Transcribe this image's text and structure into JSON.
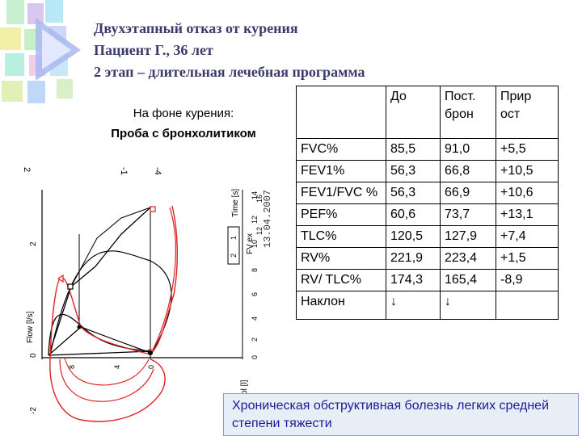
{
  "slide": {
    "title_lines": [
      "Двухэтапный отказ от курения",
      "Пациент Г., 36 лет",
      "2 этап – длительная лечебная программа"
    ],
    "subtitle_line1": "На фоне курения:",
    "subtitle_line2": "Проба с бронхолитиком"
  },
  "chart": {
    "y_axis_label": "Flow [l/s]",
    "x_axis_label": "Vol [l]",
    "fv_label": "FV ex",
    "time_label": "Time [s]",
    "date_stamp": "13.04.2007",
    "left_ticks": [
      "2",
      "0",
      "-2"
    ],
    "right_ticks": [
      "14",
      "12",
      "10",
      "8",
      "6",
      "4",
      "2",
      "0"
    ],
    "time_ticks": [
      "16",
      "12",
      "8",
      "4",
      "0"
    ],
    "legend": [
      "1",
      "2"
    ],
    "top_ticks": [
      "2",
      "-1",
      "-4"
    ]
  },
  "table": {
    "headers": [
      "",
      "До",
      "Пост. брон",
      "Прир ост"
    ],
    "rows": [
      [
        "FVC%",
        "85,5",
        "91,0",
        "+5,5"
      ],
      [
        "FEV1%",
        "56,3",
        "66,8",
        "+10,5"
      ],
      [
        "FEV1/FVC %",
        "56,3",
        "66,9",
        "+10,6"
      ],
      [
        "PEF%",
        "60,6",
        "73,7",
        "+13,1"
      ],
      [
        "TLC%",
        "120,5",
        "127,9",
        "+7,4"
      ],
      [
        "RV%",
        "221,9",
        "223,4",
        "+1,5"
      ],
      [
        "RV/ TLC%",
        "174,3",
        "165,4",
        "-8,9"
      ],
      [
        "Наклон",
        "↓",
        "↓",
        ""
      ]
    ]
  },
  "conclusion": "Хроническая обструктивная болезнь легких средней степени тяжести"
}
